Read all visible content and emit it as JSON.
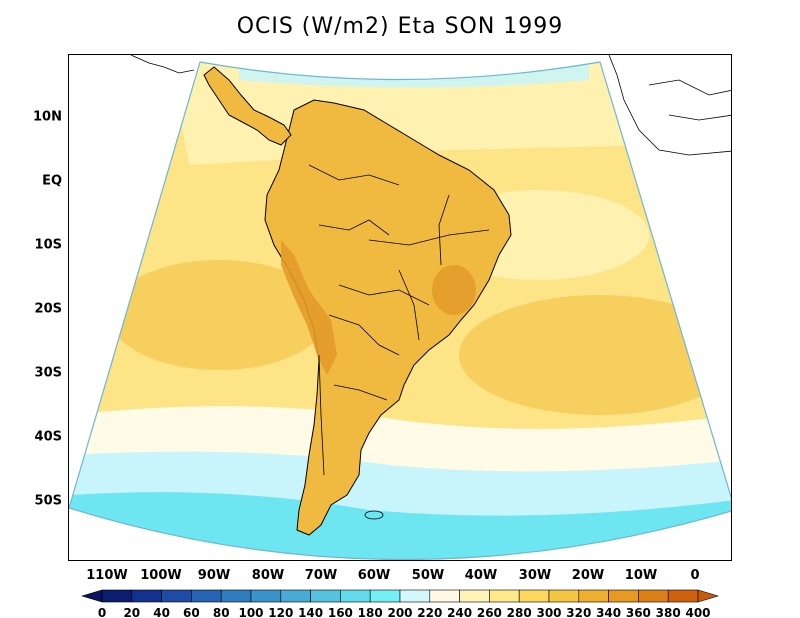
{
  "title": "OCIS (W/m2) Eta SON 1999",
  "lat_labels": [
    "10N",
    "EQ",
    "10S",
    "20S",
    "30S",
    "40S",
    "50S"
  ],
  "lon_labels": [
    "110W",
    "100W",
    "90W",
    "80W",
    "70W",
    "60W",
    "50W",
    "40W",
    "30W",
    "20W",
    "10W",
    "0"
  ],
  "colorbar": {
    "levels": [
      "0",
      "20",
      "40",
      "60",
      "80",
      "100",
      "120",
      "140",
      "160",
      "180",
      "200",
      "220",
      "240",
      "260",
      "280",
      "300",
      "320",
      "340",
      "360",
      "380",
      "400"
    ],
    "colors": [
      "#0b1d6e",
      "#13318f",
      "#1d4ba6",
      "#2563b3",
      "#2f7cc1",
      "#3b93cc",
      "#48abd6",
      "#55c3e0",
      "#62dbea",
      "#73f0f5",
      "#d3f8fb",
      "#fff9e3",
      "#fff4b8",
      "#ffe98a",
      "#fbd75f",
      "#f5c544",
      "#eeb02f",
      "#e69a22",
      "#dd7f17",
      "#d1600d"
    ],
    "left_arrow_color": "#0a1460",
    "right_arrow_color": "#c85a0c"
  },
  "map_colors": {
    "ocean_pale_yellow": "#fff2b0",
    "ocean_yellow": "#fde487",
    "ocean_orange": "#f7cf5e",
    "land_orange": "#f0b940",
    "land_dark_orange": "#e39a2a",
    "cream": "#fffbe6",
    "light_cyan": "#c8f4fb",
    "cyan": "#6ee6f2",
    "coastline": "#000000"
  }
}
